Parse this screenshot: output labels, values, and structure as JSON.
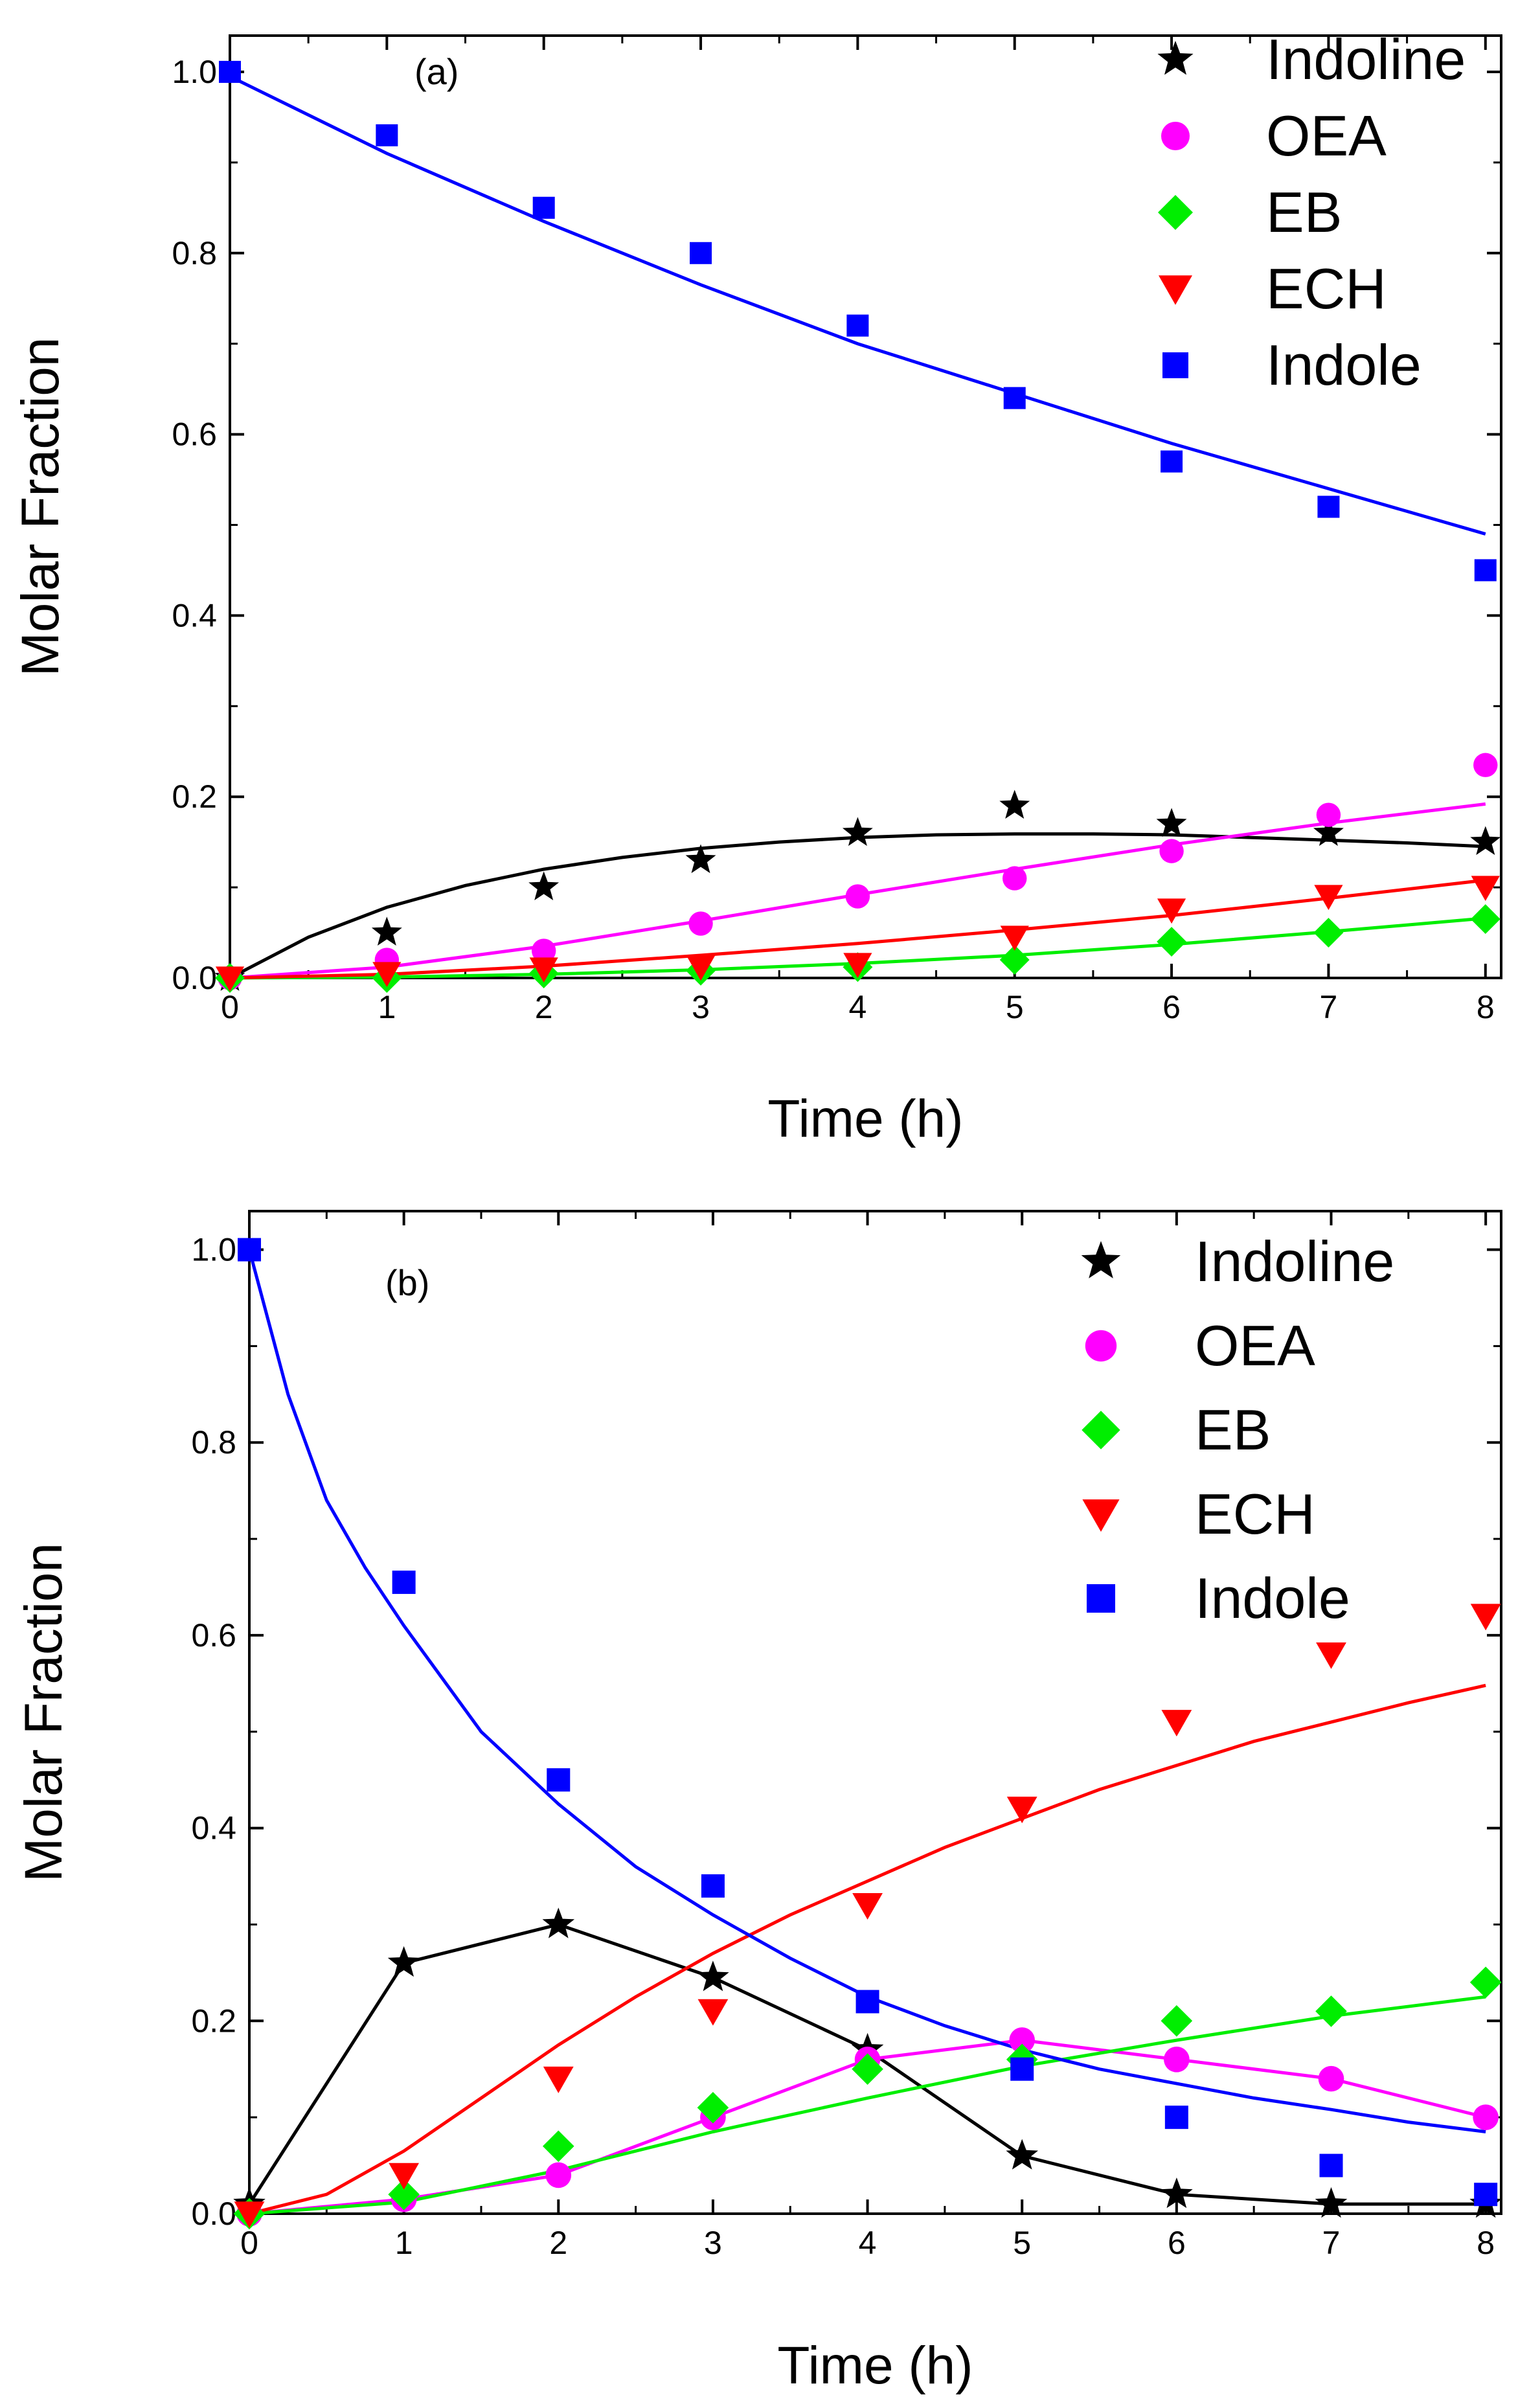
{
  "chart_data": [
    {
      "type": "scatter",
      "panel_label": "(a)",
      "xlabel": "Time (h)",
      "ylabel": "Molar Fraction",
      "xlim": [
        0,
        8.1
      ],
      "ylim": [
        0,
        1.04
      ],
      "x_ticks": [
        "0",
        "1",
        "2",
        "3",
        "4",
        "5",
        "6",
        "7",
        "8"
      ],
      "y_ticks": [
        "0.0",
        "0.2",
        "0.4",
        "0.6",
        "0.8",
        "1.0"
      ],
      "legend_position": "top-right",
      "series": [
        {
          "name": "Indoline",
          "marker": "star",
          "color": "#000000",
          "x": [
            0,
            1,
            2,
            3,
            4,
            5,
            6,
            7,
            8
          ],
          "values": [
            0.0,
            0.05,
            0.1,
            0.13,
            0.16,
            0.19,
            0.17,
            0.16,
            0.15
          ],
          "fit_x": [
            0,
            0.5,
            1,
            1.5,
            2,
            2.5,
            3,
            3.5,
            4,
            4.5,
            5,
            5.5,
            6,
            6.5,
            7,
            7.5,
            8
          ],
          "fit_y": [
            0.0,
            0.045,
            0.078,
            0.102,
            0.12,
            0.133,
            0.143,
            0.15,
            0.155,
            0.158,
            0.159,
            0.159,
            0.158,
            0.155,
            0.152,
            0.149,
            0.145
          ]
        },
        {
          "name": "OEA",
          "marker": "circle",
          "color": "#ff00ff",
          "x": [
            0,
            1,
            2,
            3,
            4,
            5,
            6,
            7,
            8
          ],
          "values": [
            0.0,
            0.02,
            0.03,
            0.06,
            0.09,
            0.11,
            0.14,
            0.18,
            0.235
          ],
          "fit_x": [
            0,
            1,
            2,
            3,
            4,
            5,
            6,
            7,
            8
          ],
          "fit_y": [
            0.0,
            0.012,
            0.035,
            0.063,
            0.092,
            0.12,
            0.147,
            0.171,
            0.192
          ]
        },
        {
          "name": "EB",
          "marker": "diamond",
          "color": "#00ee00",
          "x": [
            0,
            1,
            2,
            3,
            4,
            5,
            6,
            7,
            8
          ],
          "values": [
            0.0,
            0.0,
            0.005,
            0.008,
            0.012,
            0.02,
            0.04,
            0.05,
            0.065
          ],
          "fit_x": [
            0,
            1,
            2,
            3,
            4,
            5,
            6,
            7,
            8
          ],
          "fit_y": [
            0.0,
            0.001,
            0.004,
            0.009,
            0.016,
            0.025,
            0.037,
            0.051,
            0.066
          ]
        },
        {
          "name": "ECH",
          "marker": "triangle-down",
          "color": "#ff0000",
          "x": [
            0,
            1,
            2,
            3,
            4,
            5,
            6,
            7,
            8
          ],
          "values": [
            0.0,
            0.005,
            0.01,
            0.012,
            0.015,
            0.045,
            0.075,
            0.09,
            0.1
          ],
          "fit_x": [
            0,
            1,
            2,
            3,
            4,
            5,
            6,
            7,
            8
          ],
          "fit_y": [
            0.0,
            0.004,
            0.013,
            0.025,
            0.038,
            0.053,
            0.069,
            0.088,
            0.108
          ]
        },
        {
          "name": "Indole",
          "marker": "square",
          "color": "#0000ff",
          "x": [
            0,
            1,
            2,
            3,
            4,
            5,
            6,
            7,
            8
          ],
          "values": [
            1.0,
            0.93,
            0.85,
            0.8,
            0.72,
            0.64,
            0.57,
            0.52,
            0.45
          ],
          "fit_x": [
            0,
            1,
            2,
            3,
            4,
            5,
            6,
            7,
            8
          ],
          "fit_y": [
            0.995,
            0.91,
            0.835,
            0.765,
            0.7,
            0.645,
            0.59,
            0.54,
            0.49
          ]
        }
      ]
    },
    {
      "type": "scatter",
      "panel_label": "(b)",
      "xlabel": "Time (h)",
      "ylabel": "Molar Fraction",
      "xlim": [
        0,
        8.1
      ],
      "ylim": [
        0,
        1.04
      ],
      "x_ticks": [
        "0",
        "1",
        "2",
        "3",
        "4",
        "5",
        "6",
        "7",
        "8"
      ],
      "y_ticks": [
        "0.0",
        "0.2",
        "0.4",
        "0.6",
        "0.8",
        "1.0"
      ],
      "legend_position": "top-right",
      "series": [
        {
          "name": "Indoline",
          "marker": "star",
          "color": "#000000",
          "x": [
            0,
            1,
            2,
            3,
            4,
            5,
            6,
            7,
            8
          ],
          "values": [
            0.01,
            0.26,
            0.3,
            0.245,
            0.17,
            0.06,
            0.02,
            0.01,
            0.01
          ],
          "fit_x": [
            0,
            1,
            2,
            3,
            4,
            5,
            6,
            7,
            8
          ],
          "fit_y": [
            0.01,
            0.26,
            0.3,
            0.245,
            0.17,
            0.06,
            0.02,
            0.01,
            0.01
          ]
        },
        {
          "name": "OEA",
          "marker": "circle",
          "color": "#ff00ff",
          "x": [
            0,
            1,
            2,
            3,
            4,
            5,
            6,
            7,
            8
          ],
          "values": [
            0.0,
            0.015,
            0.04,
            0.1,
            0.16,
            0.18,
            0.16,
            0.14,
            0.1
          ],
          "fit_x": [
            0,
            1,
            2,
            3,
            4,
            5,
            6,
            7,
            8
          ],
          "fit_y": [
            0.0,
            0.015,
            0.04,
            0.1,
            0.16,
            0.18,
            0.16,
            0.14,
            0.1
          ]
        },
        {
          "name": "EB",
          "marker": "diamond",
          "color": "#00ee00",
          "x": [
            0,
            1,
            2,
            3,
            4,
            5,
            6,
            7,
            8
          ],
          "values": [
            0.0,
            0.02,
            0.07,
            0.11,
            0.15,
            0.16,
            0.2,
            0.21,
            0.24
          ],
          "fit_x": [
            0,
            1,
            2,
            3,
            4,
            5,
            6,
            7,
            8
          ],
          "fit_y": [
            0.0,
            0.012,
            0.045,
            0.085,
            0.12,
            0.153,
            0.18,
            0.205,
            0.225
          ]
        },
        {
          "name": "ECH",
          "marker": "triangle-down",
          "color": "#ff0000",
          "x": [
            0,
            1,
            2,
            3,
            4,
            5,
            6,
            7,
            8
          ],
          "values": [
            0.0,
            0.04,
            0.14,
            0.21,
            0.32,
            0.42,
            0.51,
            0.58,
            0.62
          ],
          "fit_x": [
            0,
            0.5,
            1,
            1.5,
            2,
            2.5,
            3,
            3.5,
            4,
            4.5,
            5,
            5.5,
            6,
            6.5,
            7,
            7.5,
            8
          ],
          "fit_y": [
            0.0,
            0.02,
            0.065,
            0.12,
            0.175,
            0.225,
            0.27,
            0.31,
            0.345,
            0.38,
            0.41,
            0.44,
            0.465,
            0.49,
            0.51,
            0.53,
            0.548
          ]
        },
        {
          "name": "Indole",
          "marker": "square",
          "color": "#0000ff",
          "x": [
            0,
            1,
            2,
            3,
            4,
            5,
            6,
            7,
            8
          ],
          "values": [
            1.0,
            0.655,
            0.45,
            0.34,
            0.22,
            0.15,
            0.1,
            0.05,
            0.02
          ],
          "fit_x": [
            0,
            0.25,
            0.5,
            0.75,
            1,
            1.5,
            2,
            2.5,
            3,
            3.5,
            4,
            4.5,
            5,
            5.5,
            6,
            6.5,
            7,
            7.5,
            8
          ],
          "fit_y": [
            1.0,
            0.85,
            0.74,
            0.67,
            0.61,
            0.5,
            0.425,
            0.36,
            0.31,
            0.265,
            0.225,
            0.195,
            0.17,
            0.15,
            0.135,
            0.12,
            0.108,
            0.095,
            0.085
          ]
        }
      ]
    }
  ]
}
